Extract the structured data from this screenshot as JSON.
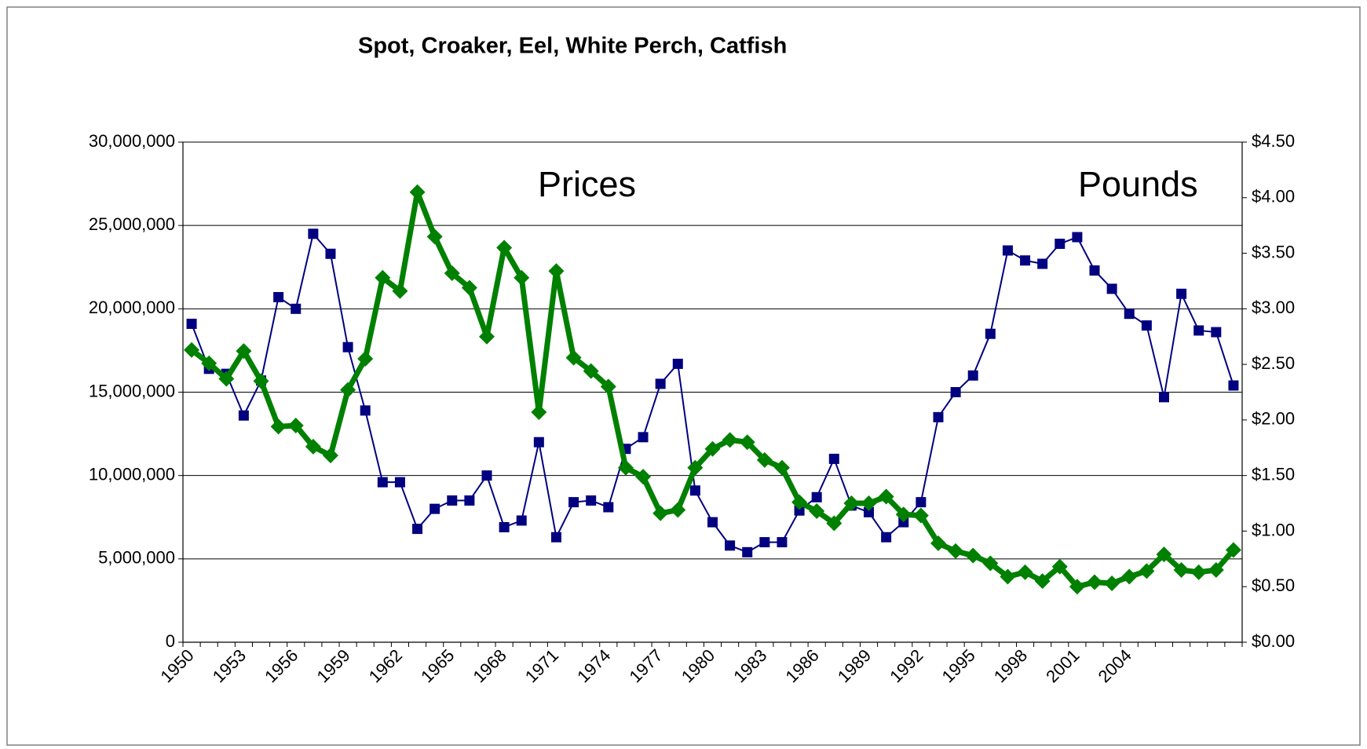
{
  "chart_data": {
    "type": "line",
    "title": "Spot, Croaker, Eel, White Perch, Catfish",
    "annotations": [
      "Prices",
      "Pounds"
    ],
    "categories": [
      1950,
      null,
      null,
      1953,
      null,
      null,
      1956,
      null,
      null,
      1959,
      null,
      null,
      1962,
      null,
      null,
      1965,
      null,
      null,
      1968,
      null,
      null,
      1971,
      null,
      null,
      1974,
      null,
      null,
      1977,
      null,
      null,
      1980,
      null,
      null,
      1983,
      null,
      null,
      1986,
      null,
      null,
      1989,
      null,
      null,
      1992,
      null,
      null,
      1995,
      null,
      null,
      1998,
      null,
      null,
      2001,
      null,
      null,
      2004,
      null,
      null,
      null,
      null,
      null,
      null
    ],
    "series": [
      {
        "color": "#000080",
        "marker": "square",
        "values": [
          19100000,
          16400000,
          16100000,
          13600000,
          15700000,
          20700000,
          20000000,
          24500000,
          23300000,
          17700000,
          13900000,
          9600000,
          9600000,
          6800000,
          8000000,
          8500000,
          8500000,
          10000000,
          6900000,
          7300000,
          12000000,
          6300000,
          8400000,
          8500000,
          8100000,
          11600000,
          12300000,
          15500000,
          16700000,
          9100000,
          7200000,
          5800000,
          5400000,
          6000000,
          6000000,
          7900000,
          8700000,
          11000000,
          8200000,
          7800000,
          6300000,
          7200000,
          8400000,
          13500000,
          15000000,
          16000000,
          18500000,
          23500000,
          22900000,
          22700000,
          23900000,
          24300000,
          22300000,
          21200000,
          19700000,
          19000000,
          14700000,
          20900000,
          18700000,
          18600000,
          15400000
        ]
      },
      {
        "color": "#008000",
        "marker": "diamond",
        "axis": "y2",
        "values": [
          2.63,
          2.51,
          2.37,
          2.62,
          2.35,
          1.94,
          1.95,
          1.76,
          1.68,
          2.27,
          2.55,
          3.28,
          3.16,
          4.05,
          3.65,
          3.32,
          3.19,
          2.75,
          3.55,
          3.28,
          2.07,
          3.34,
          2.56,
          2.44,
          2.3,
          1.57,
          1.49,
          1.16,
          1.19,
          1.57,
          1.74,
          1.82,
          1.8,
          1.64,
          1.57,
          1.26,
          1.18,
          1.07,
          1.25,
          1.25,
          1.31,
          1.15,
          1.14,
          0.89,
          0.82,
          0.78,
          0.71,
          0.59,
          0.63,
          0.55,
          0.68,
          0.5,
          0.54,
          0.53,
          0.59,
          0.64,
          0.79,
          0.65,
          0.63,
          0.65,
          0.83
        ]
      }
    ],
    "ylim": [
      0,
      30000000
    ],
    "yticks": [
      0,
      {
        "value": 5000000,
        "label": "5,000,000"
      },
      {
        "value": 10000000,
        "label": "10,000,000"
      },
      {
        "value": 15000000,
        "label": "15,000,000"
      },
      {
        "value": 20000000,
        "label": "20,000,000"
      },
      {
        "value": 25000000,
        "label": "25,000,000"
      },
      {
        "value": 30000000,
        "label": "30,000,000"
      }
    ],
    "y2lim": [
      0,
      4.5
    ],
    "y2ticks": [
      {
        "value": 0,
        "label": "$0.00"
      },
      {
        "value": 0.5,
        "label": "$0.50"
      },
      {
        "value": 1,
        "label": "$1.00"
      },
      {
        "value": 1.5,
        "label": "$1.50"
      },
      {
        "value": 2,
        "label": "$2.00"
      },
      {
        "value": 2.5,
        "label": "$2.50"
      },
      {
        "value": 3,
        "label": "$3.00"
      },
      {
        "value": 3.5,
        "label": "$3.50"
      },
      {
        "value": 4,
        "label": "$4.00"
      },
      {
        "value": 4.5,
        "label": "$4.50"
      }
    ],
    "grid": true
  }
}
